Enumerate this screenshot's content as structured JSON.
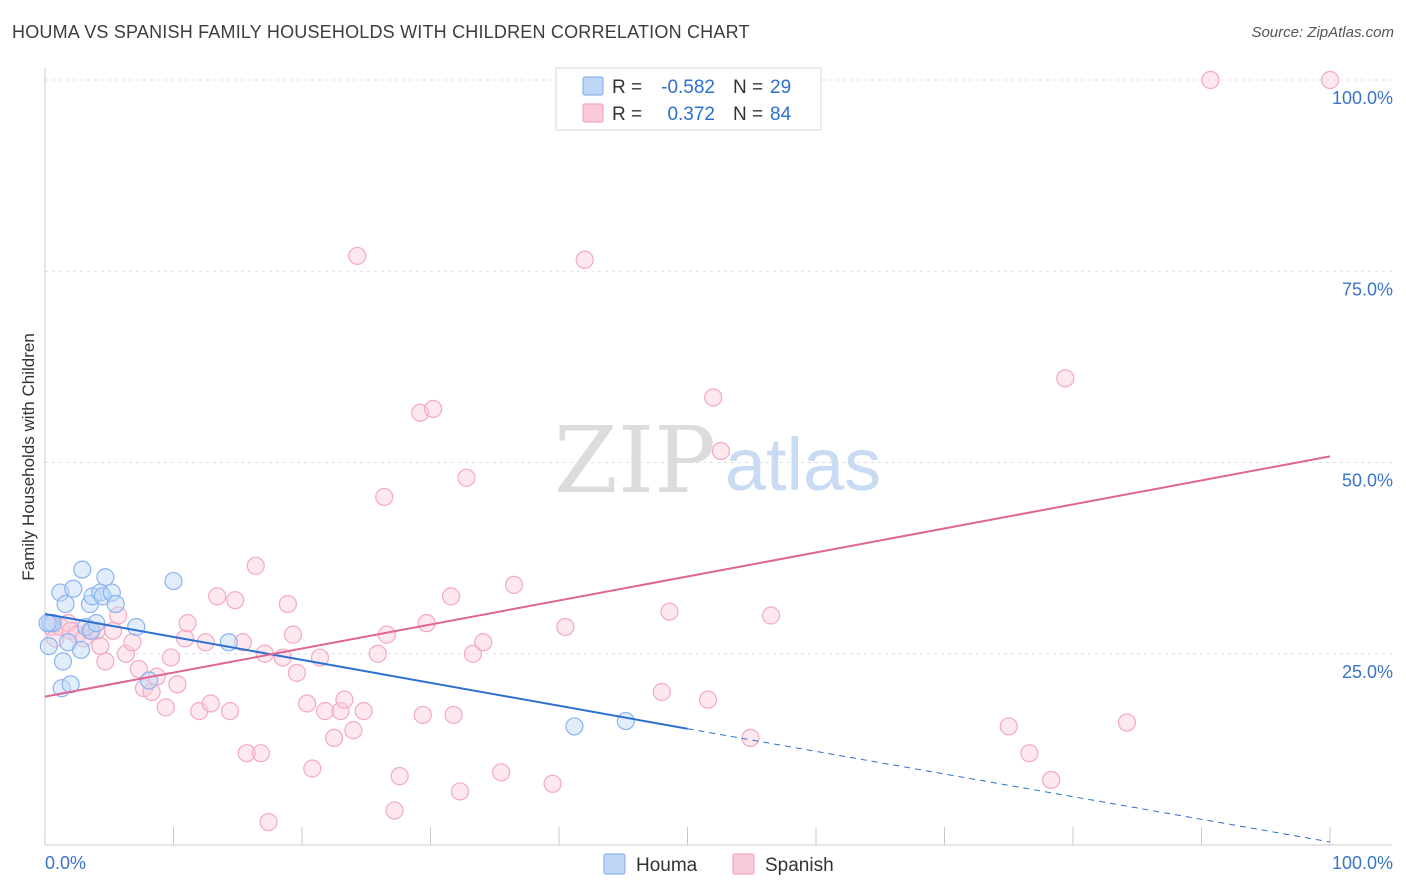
{
  "title": "HOUMA VS SPANISH FAMILY HOUSEHOLDS WITH CHILDREN CORRELATION CHART",
  "source": "Source: ZipAtlas.com",
  "watermark": {
    "zip": "ZIP",
    "atlas": "atlas"
  },
  "legend_stats": [
    {
      "r_label": "R =",
      "r_value": "-0.582",
      "n_label": "N =",
      "n_value": "29",
      "color": "#8ab4f0"
    },
    {
      "r_label": "R =",
      "r_value": "0.372",
      "n_label": "N =",
      "n_value": "84",
      "color": "#f4a9c0"
    }
  ],
  "chart_data": {
    "type": "scatter",
    "title": "HOUMA VS SPANISH FAMILY HOUSEHOLDS WITH CHILDREN CORRELATION CHART",
    "xlabel": "",
    "ylabel": "Family Households with Children",
    "xlim": [
      0,
      100
    ],
    "ylim": [
      0,
      100
    ],
    "x_tick_labels": [
      "0.0%",
      "100.0%"
    ],
    "y_ticks": [
      25,
      50,
      75,
      100
    ],
    "y_tick_labels": [
      "25.0%",
      "50.0%",
      "75.0%",
      "100.0%"
    ],
    "grid": true,
    "legend": [
      "Houma",
      "Spanish"
    ],
    "series": [
      {
        "name": "Houma",
        "color": "#8ab4f0",
        "line_color": "#2c6fd1",
        "r": -0.582,
        "n": 29,
        "trend": {
          "x0": 0,
          "y0": 30.2,
          "x1": 50,
          "y1": 15.2,
          "dash_to_x": 100,
          "dash_to_y": 0.4
        },
        "points": [
          [
            0.3,
            26
          ],
          [
            0.4,
            29
          ],
          [
            0.6,
            29
          ],
          [
            1.2,
            33
          ],
          [
            1.3,
            20.5
          ],
          [
            1.4,
            24
          ],
          [
            1.6,
            31.5
          ],
          [
            1.8,
            26.5
          ],
          [
            2.0,
            21
          ],
          [
            2.2,
            33.5
          ],
          [
            2.8,
            25.5
          ],
          [
            2.9,
            36
          ],
          [
            3.2,
            28.5
          ],
          [
            3.5,
            31.5
          ],
          [
            3.6,
            28
          ],
          [
            3.7,
            32.5
          ],
          [
            4.0,
            29
          ],
          [
            4.3,
            33
          ],
          [
            4.5,
            32.5
          ],
          [
            4.7,
            35
          ],
          [
            5.2,
            33
          ],
          [
            5.5,
            31.5
          ],
          [
            7.1,
            28.5
          ],
          [
            8.1,
            21.5
          ],
          [
            10.0,
            34.5
          ],
          [
            14.3,
            26.5
          ],
          [
            41.2,
            15.5
          ],
          [
            45.2,
            16.2
          ],
          [
            0.2,
            29
          ]
        ]
      },
      {
        "name": "Spanish",
        "color": "#f4a9c0",
        "line_color": "#e06590",
        "r": 0.372,
        "n": 84,
        "trend": {
          "x0": 0,
          "y0": 19.4,
          "x1": 100,
          "y1": 50.8
        },
        "points": [
          [
            0.5,
            28.5
          ],
          [
            0.8,
            27
          ],
          [
            1.2,
            28.5
          ],
          [
            1.8,
            29
          ],
          [
            2.0,
            28
          ],
          [
            2.5,
            27.5
          ],
          [
            3.0,
            27
          ],
          [
            3.5,
            28
          ],
          [
            4.0,
            28
          ],
          [
            4.3,
            26
          ],
          [
            4.7,
            24
          ],
          [
            5.3,
            28
          ],
          [
            5.7,
            30
          ],
          [
            6.3,
            25
          ],
          [
            6.8,
            26.5
          ],
          [
            7.3,
            23
          ],
          [
            7.7,
            20.5
          ],
          [
            8.3,
            20
          ],
          [
            8.7,
            22
          ],
          [
            9.4,
            18
          ],
          [
            9.8,
            24.5
          ],
          [
            10.3,
            21
          ],
          [
            10.9,
            27
          ],
          [
            11.1,
            29
          ],
          [
            12.0,
            17.5
          ],
          [
            12.5,
            26.5
          ],
          [
            12.9,
            18.5
          ],
          [
            13.4,
            32.5
          ],
          [
            14.4,
            17.5
          ],
          [
            14.8,
            32
          ],
          [
            15.4,
            26.5
          ],
          [
            15.7,
            12
          ],
          [
            16.4,
            36.5
          ],
          [
            16.8,
            12
          ],
          [
            17.1,
            25
          ],
          [
            17.4,
            3
          ],
          [
            18.5,
            24.5
          ],
          [
            18.9,
            31.5
          ],
          [
            19.3,
            27.5
          ],
          [
            19.6,
            22.5
          ],
          [
            20.4,
            18.5
          ],
          [
            20.8,
            10
          ],
          [
            21.4,
            24.5
          ],
          [
            21.8,
            17.5
          ],
          [
            22.5,
            14
          ],
          [
            23.0,
            17.5
          ],
          [
            23.3,
            19
          ],
          [
            24.0,
            15
          ],
          [
            24.3,
            77
          ],
          [
            24.8,
            17.5
          ],
          [
            25.9,
            25
          ],
          [
            26.4,
            45.5
          ],
          [
            26.6,
            27.5
          ],
          [
            27.2,
            4.5
          ],
          [
            27.6,
            9
          ],
          [
            29.2,
            56.5
          ],
          [
            29.4,
            17
          ],
          [
            29.7,
            29
          ],
          [
            30.2,
            57
          ],
          [
            31.6,
            32.5
          ],
          [
            31.8,
            17
          ],
          [
            32.3,
            7
          ],
          [
            32.8,
            48
          ],
          [
            33.3,
            25
          ],
          [
            34.1,
            26.5
          ],
          [
            35.5,
            9.5
          ],
          [
            36.5,
            34
          ],
          [
            39.5,
            8
          ],
          [
            40.5,
            28.5
          ],
          [
            42.0,
            76.5
          ],
          [
            48.0,
            20
          ],
          [
            48.6,
            30.5
          ],
          [
            51.6,
            19
          ],
          [
            52.0,
            58.5
          ],
          [
            52.6,
            51.5
          ],
          [
            54.9,
            14
          ],
          [
            56.5,
            30
          ],
          [
            75.0,
            15.5
          ],
          [
            76.6,
            12
          ],
          [
            78.3,
            8.5
          ],
          [
            79.4,
            61
          ],
          [
            84.2,
            16
          ],
          [
            90.7,
            100
          ],
          [
            100.0,
            100
          ]
        ]
      }
    ]
  }
}
